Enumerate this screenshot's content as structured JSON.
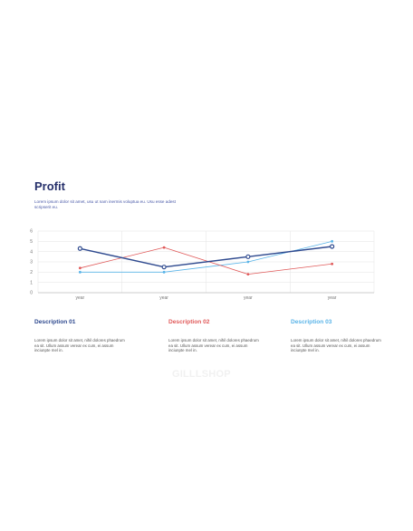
{
  "title": "Profit",
  "subtitle": "Lorem ipsum dolor sit amet, usu ut nam inermis voluptua eu. Usu esse adest scripserit eu.",
  "colors": {
    "navy": "#2f4a8f",
    "red": "#e05a5a",
    "lightblue": "#5ab4e8",
    "title": "#26306b",
    "grid": "#e3e3e3"
  },
  "chart_data": {
    "type": "line",
    "categories": [
      "year",
      "year",
      "year",
      "year"
    ],
    "yticks": [
      0,
      1,
      2,
      3,
      4,
      5,
      6
    ],
    "ylim": [
      0,
      6
    ],
    "grid": true,
    "series": [
      {
        "values": [
          4.3,
          2.5,
          3.5,
          4.5
        ],
        "color": "#2f4a8f"
      },
      {
        "values": [
          2.4,
          4.4,
          1.8,
          2.8
        ],
        "color": "#e05a5a"
      },
      {
        "values": [
          2.0,
          2.0,
          3.0,
          5.0
        ],
        "color": "#5ab4e8"
      }
    ]
  },
  "descriptions": [
    {
      "title": "Description 01",
      "color": "#2f4a8f",
      "body": "Lorem ipsum dolor sit amet, nihil dolores phaedrum ea sit. Ullum assum verear ex cum, ei assum inciunpte mel in."
    },
    {
      "title": "Description 02",
      "color": "#e05a5a",
      "body": "Lorem ipsum dolor sit amet, nihil dolores phaedrum ea sit. Ullum assum verear ex cum, ei assum inciunpte mel in."
    },
    {
      "title": "Description 03",
      "color": "#5ab4e8",
      "body": "Lorem ipsum dolor sit amet, nihil dolores phaedrum ea sit. Ullum assum verear ex cum, ei assum inciunpte mel in."
    }
  ],
  "watermark": "GILLLSHOP"
}
